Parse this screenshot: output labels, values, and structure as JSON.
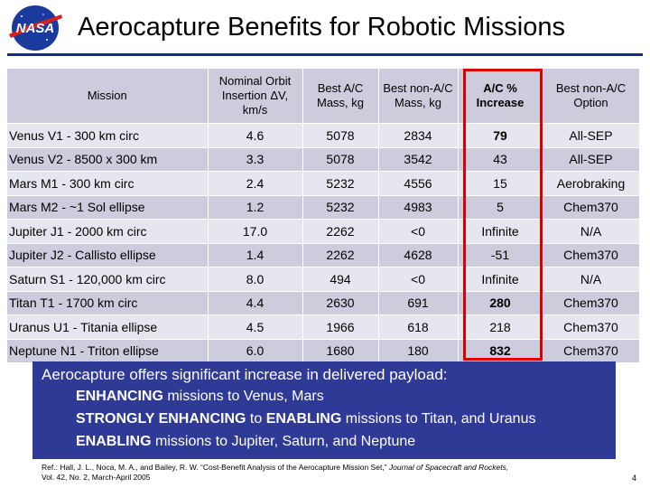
{
  "logo_text": "NASA",
  "title": "Aerocapture Benefits for Robotic Missions",
  "table": {
    "headers": [
      "Mission",
      "Nominal Orbit Insertion ΔV, km/s",
      "Best A/C Mass, kg",
      "Best non-A/C Mass, kg",
      "A/C % Increase",
      "Best non-A/C Option"
    ],
    "rows": [
      [
        "Venus V1 - 300 km circ",
        "4.6",
        "5078",
        "2834",
        "79",
        "All-SEP"
      ],
      [
        "Venus V2 - 8500 x 300 km",
        "3.3",
        "5078",
        "3542",
        "43",
        "All-SEP"
      ],
      [
        "Mars M1 - 300 km circ",
        "2.4",
        "5232",
        "4556",
        "15",
        "Aerobraking"
      ],
      [
        "Mars M2 - ~1 Sol ellipse",
        "1.2",
        "5232",
        "4983",
        "5",
        "Chem370"
      ],
      [
        "Jupiter J1 - 2000 km circ",
        "17.0",
        "2262",
        "<0",
        "Infinite",
        "N/A"
      ],
      [
        "Jupiter J2 - Callisto ellipse",
        "1.4",
        "2262",
        "4628",
        "-51",
        "Chem370"
      ],
      [
        "Saturn S1 - 120,000 km circ",
        "8.0",
        "494",
        "<0",
        "Infinite",
        "N/A"
      ],
      [
        "Titan T1 - 1700 km circ",
        "4.4",
        "2630",
        "691",
        "280",
        "Chem370"
      ],
      [
        "Uranus U1 - Titania ellipse",
        "4.5",
        "1966",
        "618",
        "218",
        "Chem370"
      ],
      [
        "Neptune N1 - Triton ellipse",
        "6.0",
        "1680",
        "180",
        "832",
        "Chem370"
      ]
    ]
  },
  "banner": {
    "lead": "Aerocapture offers significant increase in delivered payload:",
    "lines": [
      {
        "bold": "ENHANCING",
        "mid": " missions to Venus, Mars",
        "bold2": "",
        "rest": ""
      },
      {
        "bold": "STRONGLY ENHANCING",
        "mid": " to ",
        "bold2": "ENABLING",
        "rest": " missions to Titan, and Uranus"
      },
      {
        "bold": "ENABLING",
        "mid": " missions to Jupiter, Saturn, and Neptune",
        "bold2": "",
        "rest": ""
      }
    ]
  },
  "reference": {
    "prefix": "Ref.: Hall, J. L., Noca, M. A., and Bailey, R. W. “Cost-Benefit Analysis of the Aerocapture Mission Set,”",
    "journal": "Journal of Spacecraft and Rockets,",
    "line2": "Vol. 42, No. 2, March-April 2005"
  },
  "page_number": "4",
  "colors": {
    "banner": "#2e3a95",
    "highlight": "#dd0000",
    "row_dark": "#ccccdd",
    "row_light": "#e6e6ef"
  }
}
